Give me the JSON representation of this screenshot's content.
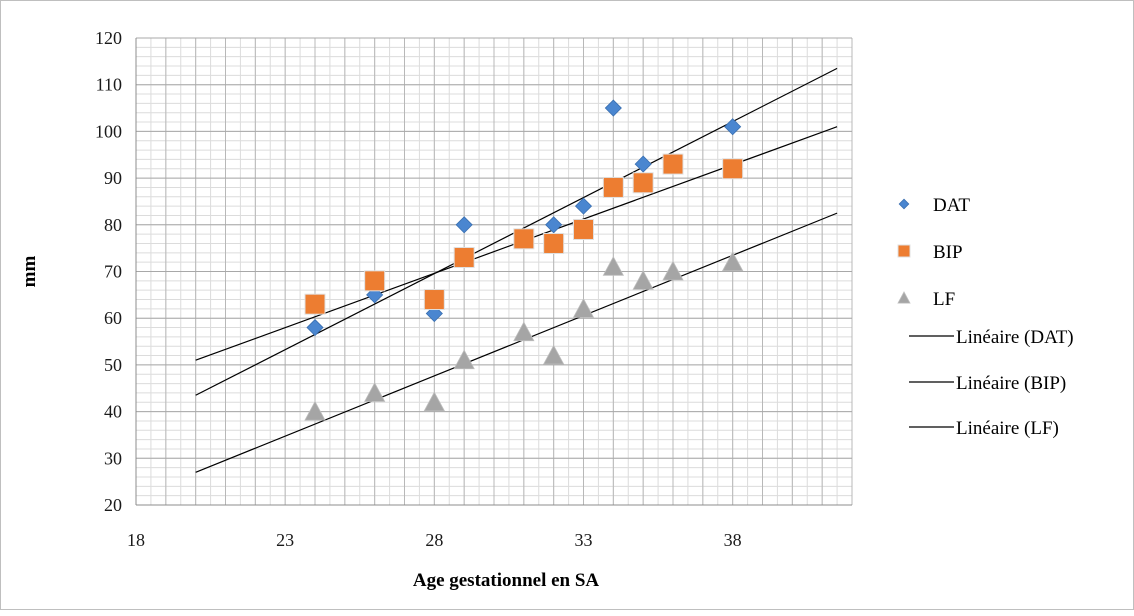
{
  "chart_data": {
    "type": "scatter",
    "xlabel": "Age gestationnel en SA",
    "ylabel": "mm",
    "xlim": [
      18,
      42
    ],
    "ylim": [
      20,
      120
    ],
    "xticks": [
      18,
      23,
      28,
      33,
      38
    ],
    "yticks": [
      20,
      30,
      40,
      50,
      60,
      70,
      80,
      90,
      100,
      110,
      120
    ],
    "grid": true,
    "legend_position": "right",
    "series": [
      {
        "name": "DAT",
        "marker": "diamond",
        "color": "#4a86d0",
        "points": [
          [
            24,
            58
          ],
          [
            26,
            65
          ],
          [
            28,
            61
          ],
          [
            29,
            80
          ],
          [
            31,
            77
          ],
          [
            32,
            80
          ],
          [
            33,
            84
          ],
          [
            34,
            105
          ],
          [
            35,
            93
          ],
          [
            36,
            93
          ],
          [
            38,
            101
          ]
        ]
      },
      {
        "name": "BIP",
        "marker": "square",
        "color": "#ed7d31",
        "points": [
          [
            24,
            63
          ],
          [
            26,
            68
          ],
          [
            28,
            64
          ],
          [
            29,
            73
          ],
          [
            31,
            77
          ],
          [
            32,
            76
          ],
          [
            33,
            79
          ],
          [
            34,
            88
          ],
          [
            35,
            89
          ],
          [
            36,
            93
          ],
          [
            38,
            92
          ]
        ]
      },
      {
        "name": "LF",
        "marker": "triangle",
        "color": "#a5a5a5",
        "points": [
          [
            24,
            40
          ],
          [
            26,
            44
          ],
          [
            28,
            42
          ],
          [
            29,
            51
          ],
          [
            31,
            57
          ],
          [
            32,
            52
          ],
          [
            33,
            62
          ],
          [
            34,
            71
          ],
          [
            35,
            68
          ],
          [
            36,
            70
          ],
          [
            38,
            72
          ]
        ]
      }
    ],
    "trendlines": [
      {
        "name": "Linéaire (DAT)",
        "color": "#000000",
        "x": [
          20,
          41.5
        ],
        "y": [
          43.5,
          113.5
        ]
      },
      {
        "name": "Linéaire (BIP)",
        "color": "#000000",
        "x": [
          20,
          41.5
        ],
        "y": [
          51,
          101
        ]
      },
      {
        "name": "Linéaire (LF)",
        "color": "#000000",
        "x": [
          20,
          41.5
        ],
        "y": [
          27,
          82.5
        ]
      }
    ]
  }
}
